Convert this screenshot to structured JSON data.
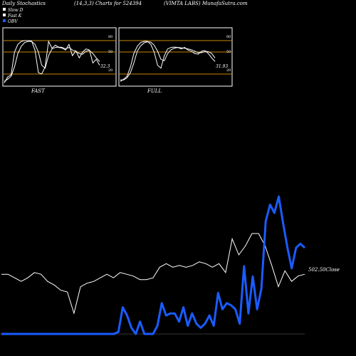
{
  "header": {
    "left": "Daily Stochastics",
    "center": "(14,3,3) Charts for 524394",
    "right": "(VIMTA LABS) MunafaSutra.com"
  },
  "legend": {
    "items": [
      {
        "label": "Slow D",
        "color": "#ffffff"
      },
      {
        "label": "Fast K",
        "color": "#ffffff"
      },
      {
        "label": "OBV",
        "color": "#1a5cff"
      }
    ]
  },
  "colors": {
    "background": "#000000",
    "level_line": "#c8860a",
    "stoch_line": "#ffffff",
    "obv_line": "#1a5cff",
    "close_line": "#ffffff"
  },
  "chart_data": [
    {
      "type": "line",
      "title": "FAST",
      "ylim": [
        0,
        100
      ],
      "levels": [
        20,
        50,
        80
      ],
      "level_labels": [
        "80",
        "50",
        "20"
      ],
      "last_value_label": "32.3",
      "series": [
        {
          "name": "Fast K",
          "values": [
            8,
            16,
            19,
            50,
            70,
            78,
            80,
            80,
            79,
            55,
            22,
            20,
            30,
            78,
            60,
            68,
            62,
            60,
            55,
            70,
            45,
            53,
            42,
            50,
            58,
            55,
            35,
            40,
            32
          ]
        },
        {
          "name": "Slow D",
          "values": [
            10,
            13,
            17,
            30,
            48,
            65,
            75,
            78,
            78,
            70,
            50,
            32,
            28,
            45,
            58,
            62,
            63,
            62,
            58,
            62,
            55,
            52,
            48,
            47,
            52,
            54,
            48,
            42,
            37
          ]
        }
      ]
    },
    {
      "type": "line",
      "title": "FULL",
      "ylim": [
        0,
        100
      ],
      "levels": [
        20,
        50,
        80
      ],
      "level_labels": [
        "80",
        "50",
        "20"
      ],
      "last_value_label": "31.93",
      "series": [
        {
          "name": "Fast K",
          "values": [
            10,
            13,
            17,
            30,
            48,
            65,
            75,
            78,
            78,
            70,
            50,
            32,
            28,
            45,
            58,
            62,
            63,
            62,
            58,
            62,
            55,
            52,
            48,
            47,
            52,
            54,
            48,
            42,
            37
          ]
        },
        {
          "name": "Slow D",
          "values": [
            12,
            12,
            15,
            22,
            35,
            52,
            66,
            74,
            77,
            76,
            68,
            52,
            40,
            38,
            48,
            56,
            60,
            62,
            61,
            60,
            58,
            56,
            52,
            49,
            49,
            51,
            51,
            48,
            42
          ]
        }
      ]
    },
    {
      "type": "line",
      "title": "",
      "close_label": "502.50Close",
      "series": [
        {
          "name": "OBV",
          "values": [
            -1,
            -1,
            -1,
            -1,
            -1,
            -1,
            -1,
            -1,
            -1,
            -1,
            -1,
            -1,
            -1,
            -1,
            -1,
            -1,
            -1,
            -1,
            -1,
            -1,
            -1,
            -1,
            -1,
            -1,
            -1,
            -1,
            -1,
            0,
            12,
            8,
            2,
            -1,
            5,
            -1,
            -1,
            -1,
            3,
            14,
            8,
            9,
            9,
            5,
            12,
            3,
            9,
            4,
            2,
            4,
            8,
            3,
            19,
            11,
            14,
            13,
            11,
            4,
            32,
            9,
            27,
            11,
            21,
            54,
            62,
            58,
            66,
            53,
            41,
            31,
            41,
            43,
            41
          ]
        },
        {
          "name": "Close",
          "values": [
            40,
            40,
            38,
            36,
            38,
            41,
            40,
            36,
            34,
            31,
            30,
            18,
            33,
            35,
            36,
            38,
            40,
            38,
            41,
            40,
            39,
            37,
            37,
            38,
            44,
            46,
            44,
            45,
            44,
            45,
            47,
            46,
            44,
            46,
            41,
            60,
            51,
            56,
            63,
            63,
            56,
            45,
            33,
            42,
            36,
            39,
            40
          ]
        }
      ]
    }
  ]
}
